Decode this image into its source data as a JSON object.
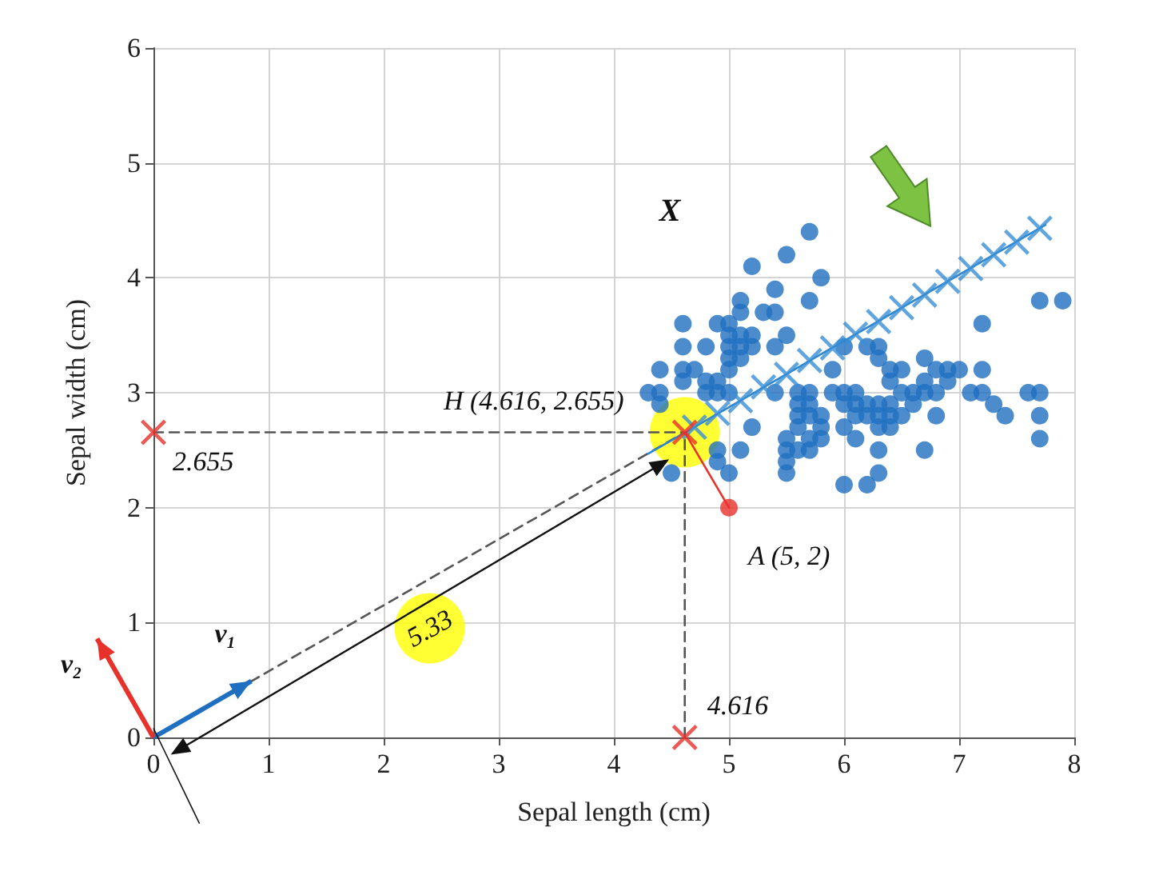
{
  "chart_data": {
    "type": "scatter",
    "xlabel": "Sepal length (cm)",
    "ylabel": "Sepal width (cm)",
    "xlim": [
      0,
      8
    ],
    "ylim": [
      0,
      6
    ],
    "xticks": [
      0,
      1,
      2,
      3,
      4,
      5,
      6,
      7,
      8
    ],
    "yticks": [
      0,
      1,
      2,
      3,
      4,
      5,
      6
    ],
    "grid": true,
    "marker": "circle",
    "line_style": "solid",
    "series": [
      {
        "type": "bubble",
        "color": "#ffff00",
        "x": [
          4.616,
          2.4
        ],
        "values": [
          2.655,
          0.95
        ],
        "sizes": [
          1,
          1
        ]
      },
      {
        "type": "line",
        "line_style": "dashed",
        "marker": "none",
        "color": "#555555",
        "x": [
          0,
          4.616
        ],
        "values": [
          0,
          2.655
        ]
      },
      {
        "type": "line",
        "line_style": "dashed",
        "marker": "none",
        "color": "#555555",
        "x": [
          0,
          4.616
        ],
        "values": [
          2.655,
          2.655
        ]
      },
      {
        "type": "line",
        "line_style": "dashed",
        "marker": "none",
        "color": "#555555",
        "x": [
          4.616,
          4.616
        ],
        "values": [
          0,
          2.655
        ]
      },
      {
        "color": "#1f6fc0",
        "x": [
          5.1,
          4.9,
          4.7,
          4.6,
          5.0,
          5.4,
          4.6,
          5.0,
          4.4,
          4.9,
          5.4,
          4.8,
          4.8,
          4.3,
          5.8,
          5.7,
          5.7,
          5.1,
          5.4,
          5.1,
          4.6,
          5.1,
          5.0,
          5.2,
          5.2,
          4.8,
          5.2,
          5.5,
          5.0,
          5.5,
          4.9,
          4.4,
          5.1,
          5.0,
          4.5,
          4.4,
          4.6,
          5.3,
          5.0,
          7.0,
          6.4,
          6.9,
          5.5,
          6.5,
          5.7,
          6.3,
          4.9,
          6.6,
          5.2,
          5.9,
          6.0,
          6.1,
          5.6,
          6.7,
          5.6,
          5.8,
          6.2,
          5.6,
          5.9,
          6.1,
          6.3,
          6.4,
          6.6,
          6.8,
          6.7,
          6.0,
          5.7,
          5.5,
          6.0,
          5.4,
          6.0,
          6.3,
          5.5,
          5.5,
          6.1,
          5.8,
          5.0,
          5.6,
          5.7,
          5.7,
          6.2,
          5.1,
          7.1,
          6.3,
          6.5,
          7.6,
          4.9,
          7.3,
          6.7,
          7.2,
          6.5,
          6.4,
          6.8,
          5.7,
          5.8,
          7.7,
          7.7,
          6.9,
          5.6,
          7.7,
          6.3,
          6.7,
          7.2,
          6.2,
          6.4,
          7.2,
          7.4,
          7.9,
          6.3,
          6.1,
          7.7,
          6.3,
          6.4,
          6.0,
          6.8,
          6.2
        ],
        "values": [
          3.5,
          3.0,
          3.2,
          3.1,
          3.6,
          3.9,
          3.4,
          3.4,
          2.9,
          3.1,
          3.7,
          3.4,
          3.0,
          3.0,
          4.0,
          4.4,
          3.8,
          3.8,
          3.4,
          3.7,
          3.6,
          3.3,
          3.0,
          3.5,
          3.4,
          3.1,
          4.1,
          4.2,
          3.2,
          3.5,
          3.6,
          3.0,
          3.4,
          3.5,
          2.3,
          3.2,
          3.2,
          3.7,
          3.3,
          3.2,
          3.2,
          3.1,
          2.3,
          2.8,
          2.8,
          3.3,
          2.4,
          2.9,
          2.7,
          3.0,
          2.2,
          2.9,
          2.9,
          3.1,
          3.0,
          2.7,
          2.2,
          2.5,
          3.2,
          2.8,
          2.5,
          2.9,
          3.0,
          2.8,
          3.0,
          2.9,
          2.6,
          2.4,
          2.7,
          3.0,
          3.4,
          2.3,
          2.5,
          2.6,
          3.0,
          2.6,
          2.3,
          2.7,
          3.0,
          2.9,
          2.9,
          2.5,
          3.0,
          2.9,
          3.0,
          3.0,
          2.5,
          2.9,
          2.5,
          3.6,
          3.2,
          2.7,
          3.0,
          2.5,
          2.8,
          3.8,
          2.6,
          3.2,
          2.8,
          2.8,
          2.7,
          3.3,
          3.2,
          2.8,
          2.8,
          3.0,
          2.8,
          3.8,
          2.8,
          2.6,
          3.0,
          3.4,
          3.1,
          3.0,
          3.2,
          3.4
        ]
      },
      {
        "type": "line",
        "marker": "none",
        "color": "#2e86d1",
        "x": [
          4.3,
          7.75
        ],
        "values": [
          2.47,
          4.46
        ]
      },
      {
        "marker": "cross",
        "color": "#3a8fd6",
        "x": [
          4.7,
          4.9,
          5.1,
          5.3,
          5.5,
          5.7,
          5.9,
          6.1,
          6.3,
          6.5,
          6.7,
          6.9,
          7.1,
          7.3,
          7.5,
          7.7
        ],
        "values": [
          2.7,
          2.82,
          2.93,
          3.05,
          3.16,
          3.28,
          3.39,
          3.51,
          3.62,
          3.74,
          3.85,
          3.97,
          4.08,
          4.2,
          4.31,
          4.43
        ]
      },
      {
        "type": "line",
        "marker": "none",
        "color": "#e8312a",
        "x": [
          5,
          4.616
        ],
        "values": [
          2,
          2.655
        ]
      },
      {
        "color": "#e8312a",
        "x": [
          5
        ],
        "values": [
          2
        ]
      },
      {
        "marker": "cross",
        "color": "#e8312a",
        "x": [
          0,
          4.616,
          4.616
        ],
        "values": [
          2.655,
          0,
          2.655
        ]
      }
    ],
    "annotations": [
      "X",
      {
        "text": "H (4.616, 2.655)",
        "x": 4.616,
        "y": 2.655
      },
      {
        "text": "2.655",
        "x": 0,
        "y": 2.655
      },
      {
        "text": "A (5, 2)",
        "x": 5,
        "y": 2
      },
      {
        "text": "4.616",
        "x": 4.616,
        "y": 0
      },
      {
        "text": "5.33",
        "x": 2.4,
        "y": 0.95
      },
      "v₁",
      "v₂"
    ]
  }
}
